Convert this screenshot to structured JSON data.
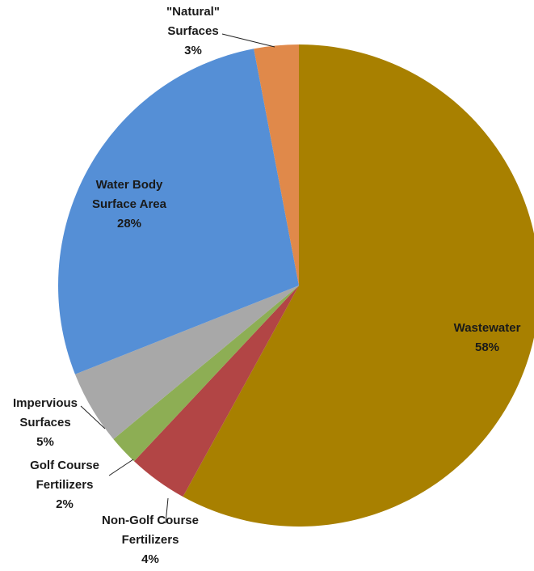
{
  "chart_data": {
    "type": "pie",
    "title": "",
    "legend": "none",
    "slices": [
      {
        "name": "Wastewater",
        "label": "Wastewater",
        "percent_label": "58%",
        "value": 58,
        "color": "#A88000"
      },
      {
        "name": "Non-Golf Course Fertilizers",
        "label": "Non-Golf Course Fertilizers",
        "percent_label": "4%",
        "value": 4,
        "color": "#B24545"
      },
      {
        "name": "Golf Course Fertilizers",
        "label": "Golf Course Fertilizers",
        "percent_label": "2%",
        "value": 2,
        "color": "#8DAE54"
      },
      {
        "name": "Impervious Surfaces",
        "label": "Impervious Surfaces",
        "percent_label": "5%",
        "value": 5,
        "color": "#A8A8A8"
      },
      {
        "name": "Water Body Surface Area",
        "label": "Water Body Surface Area",
        "percent_label": "28%",
        "value": 28,
        "color": "#558FD6"
      },
      {
        "name": "\"Natural\" Surfaces",
        "label": "\"Natural\" Surfaces",
        "percent_label": "3%",
        "value": 3,
        "color": "#E0894A"
      }
    ]
  }
}
